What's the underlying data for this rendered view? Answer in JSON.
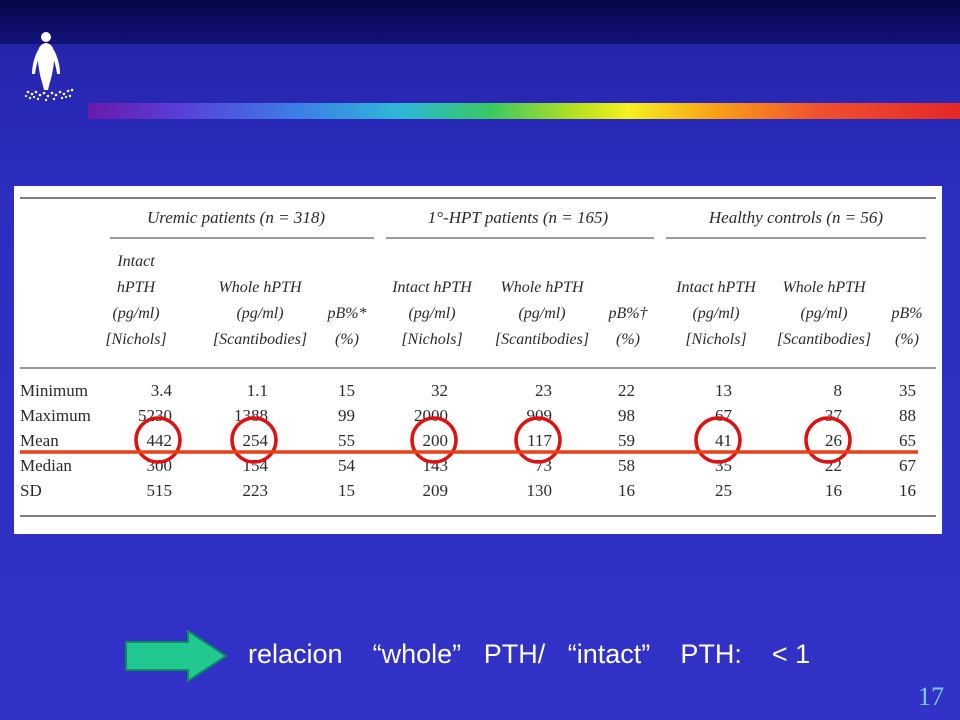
{
  "table": {
    "groups": [
      "Uremic patients (n = 318)",
      "1°-HPT patients (n = 165)",
      "Healthy controls (n = 56)"
    ],
    "columns": [
      {
        "lines": [
          "Intact",
          "hPTH",
          "(pg/ml)",
          "[Nichols]"
        ]
      },
      {
        "lines": [
          "Whole hPTH",
          "(pg/ml)",
          "[Scantibodies]"
        ]
      },
      {
        "lines": [
          "pB%*",
          "(%)"
        ]
      },
      {
        "lines": [
          "Intact hPTH",
          "(pg/ml)",
          "[Nichols]"
        ]
      },
      {
        "lines": [
          "Whole hPTH",
          "(pg/ml)",
          "[Scantibodies]"
        ]
      },
      {
        "lines": [
          "pB%†",
          "(%)"
        ]
      },
      {
        "lines": [
          "Intact hPTH",
          "(pg/ml)",
          "[Nichols]"
        ]
      },
      {
        "lines": [
          "Whole hPTH",
          "(pg/ml)",
          "[Scantibodies]"
        ]
      },
      {
        "lines": [
          "pB%",
          "(%)"
        ]
      }
    ],
    "rows": [
      {
        "label": "Minimum",
        "values": [
          "3.4",
          "1.1",
          "15",
          "32",
          "23",
          "22",
          "13",
          "8",
          "35"
        ]
      },
      {
        "label": "Maximum",
        "values": [
          "5230",
          "1388",
          "99",
          "2000",
          "909",
          "98",
          "67",
          "37",
          "88"
        ]
      },
      {
        "label": "Mean",
        "values": [
          "442",
          "254",
          "55",
          "200",
          "117",
          "59",
          "41",
          "26",
          "65"
        ]
      },
      {
        "label": "Median",
        "values": [
          "300",
          "154",
          "54",
          "143",
          "73",
          "58",
          "35",
          "22",
          "67"
        ]
      },
      {
        "label": "SD",
        "values": [
          "515",
          "223",
          "15",
          "209",
          "130",
          "16",
          "25",
          "16",
          "16"
        ]
      }
    ],
    "highlighted_row": "Mean",
    "highlighted_columns": [
      0,
      1,
      3,
      4,
      6,
      7
    ]
  },
  "caption": {
    "word1": "relacion",
    "word2": "“whole”",
    "word3": "PTH/",
    "word4": "“intact”",
    "word5": "PTH:",
    "word6": "< 1"
  },
  "page_number": "17",
  "colors": {
    "background": "#3232c8",
    "highlight_circle": "#e01010",
    "highlight_line": "#e8401a",
    "arrow": "#20c890",
    "page_number": "#6fd0ff"
  },
  "icons": {
    "logo": "human-figure-logo-icon",
    "arrow": "right-arrow-icon"
  }
}
